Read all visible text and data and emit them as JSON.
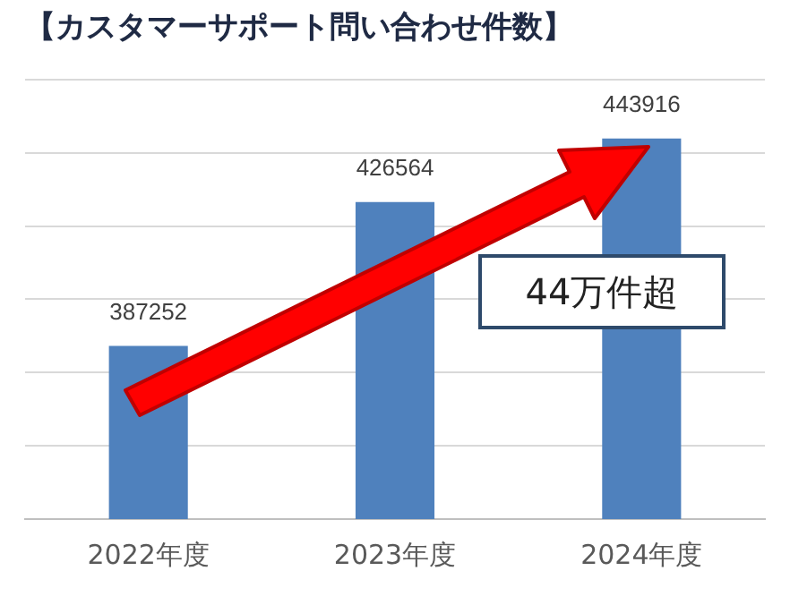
{
  "chart_data": {
    "type": "bar",
    "title": "【カスタマーサポート問い合わせ件数】",
    "categories": [
      "2022年度",
      "2023年度",
      "2024年度"
    ],
    "values": [
      387252,
      426564,
      443916
    ],
    "color": "#4f81bd",
    "ylim": [
      340000,
      460000
    ],
    "yticks": [
      {
        "value": 340000,
        "label": null
      },
      {
        "value": 360000,
        "label": null
      },
      {
        "value": 380000,
        "label": null
      },
      {
        "value": 400000,
        "label": null
      },
      {
        "value": 420000,
        "label": null
      },
      {
        "value": 440000,
        "label": null
      },
      {
        "value": 460000,
        "label": null
      }
    ],
    "tick_labels": "x",
    "grid": "y",
    "legend": false,
    "data_labels": true,
    "annotations": [
      "44万件超"
    ]
  }
}
